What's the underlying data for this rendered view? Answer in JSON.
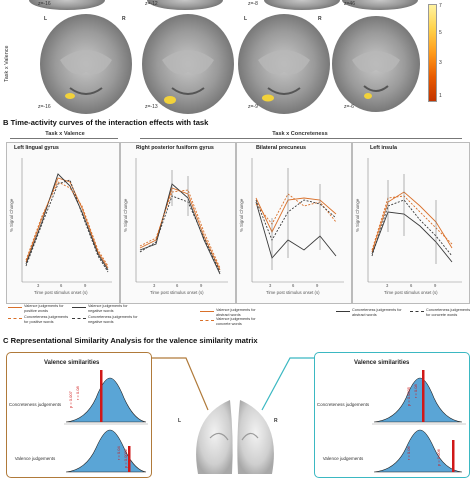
{
  "section_a": {
    "row_label": "Task x Valence",
    "z_top": [
      "z=-16",
      "z=-12",
      "z=-8",
      "z=46"
    ],
    "z_bottom": [
      "z=-16",
      "z=-13",
      "z=-9",
      "z=-6"
    ],
    "left_marker": "L",
    "right_marker": "R",
    "colorbar_ticks": [
      "7",
      "5",
      "3",
      "1"
    ]
  },
  "section_b": {
    "heading": "B  Time-activity curves of the interaction effects with task",
    "group_valence": "Task x Valence",
    "group_concreteness": "Task x Concreteness",
    "ylabel": "% Signal Change",
    "xlabel": "Time post stimulus onset (s)",
    "xticks": [
      "3",
      "6",
      "9"
    ],
    "colors": {
      "orange": "#d9702a",
      "dark": "#3a3a3a"
    },
    "panels": [
      {
        "title": "Left lingual gyrus"
      },
      {
        "title": "Right posterior fusiform gyrus"
      },
      {
        "title": "Bilateral precuneus"
      },
      {
        "title": "Left insula"
      }
    ],
    "legend_valence": [
      "Valence judgements for positive words",
      "Valence judgements for negative words",
      "Concreteness judgements for positive words",
      "Concreteness judgements for negative words"
    ],
    "legend_concreteness": [
      "Valence judgements for abstract words",
      "Valence judgements for concrete words",
      "Concreteness judgements for abstract words",
      "Concreteness judgements for concrete words"
    ]
  },
  "section_c": {
    "heading": "C  Representational Similarity Analysis for the valence similarity matrix",
    "left_title": "Valence similarities",
    "right_title": "Valence similarities",
    "left_row1_label": "Concreteness judgements",
    "left_row2_label": "Valence judgements",
    "right_row1_label": "Concreteness judgements",
    "right_row2_label": "Valence judgements",
    "left_stat1": [
      "p = 0.007",
      "r = 0.08"
    ],
    "left_stat2": [
      "r = 0.04",
      "p = 0.0002"
    ],
    "right_stat1": [
      "p = 0.0005",
      "r = 0.08"
    ],
    "right_stat2": [
      "r = 0.06",
      "p = 0.006"
    ],
    "left_marker": "L",
    "right_marker": "R",
    "colors": {
      "left_frame": "#b07a3a",
      "right_frame": "#3bb8c2",
      "fill": "#5aa5d6",
      "stat": "#d01818"
    }
  }
}
